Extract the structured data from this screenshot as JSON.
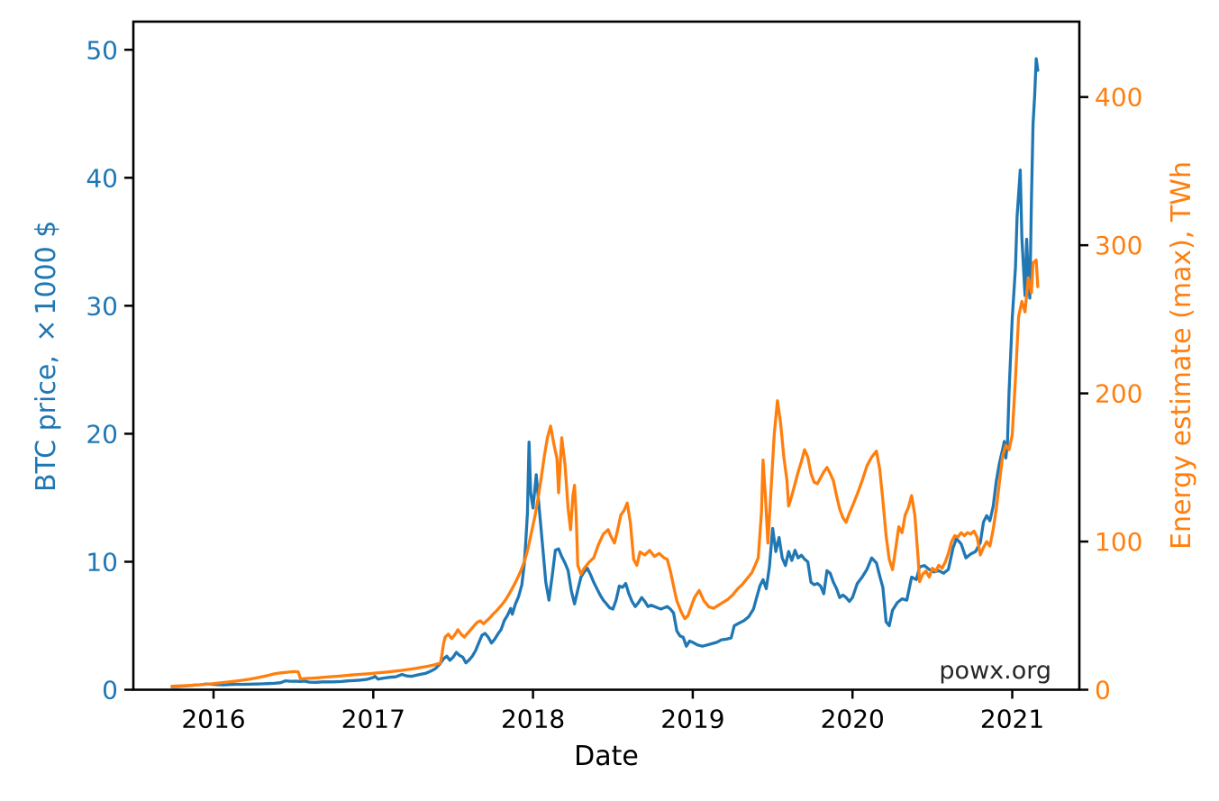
{
  "page": {
    "background": "#ffffff"
  },
  "chart_data": {
    "type": "line",
    "title": "",
    "xlabel": "Date",
    "ylabel_left": "BTC price, ×1000 $",
    "ylabel_right": "Energy estimate (max), TWh",
    "annotation": "powx.org",
    "annotation_color": "#262626",
    "grid": false,
    "legend": "none",
    "colors": {
      "btc": "#1f77b4",
      "energy": "#ff7f0e",
      "axis": "#000000"
    },
    "xlim": [
      2015.498,
      2021.42
    ],
    "ylim_left": [
      0,
      52.2
    ],
    "ylim_right": [
      0,
      450.9
    ],
    "x_tick_values": [
      2016,
      2017,
      2018,
      2019,
      2020,
      2021
    ],
    "x_tick_labels": [
      "2016",
      "2017",
      "2018",
      "2019",
      "2020",
      "2021"
    ],
    "yticks_left": [
      0,
      10,
      20,
      30,
      40,
      50
    ],
    "yticks_right": [
      0,
      100,
      200,
      300,
      400
    ],
    "series": [
      {
        "name": "BTC price, ×1000 $",
        "axis": "left",
        "color": "#1f77b4",
        "x": [
          2015.74,
          2015.78,
          2015.82,
          2015.86,
          2015.89,
          2015.92,
          2015.95,
          2015.98,
          2016.02,
          2016.06,
          2016.1,
          2016.14,
          2016.18,
          2016.22,
          2016.26,
          2016.3,
          2016.34,
          2016.38,
          2016.42,
          2016.45,
          2016.48,
          2016.51,
          2016.54,
          2016.57,
          2016.6,
          2016.64,
          2016.68,
          2016.72,
          2016.76,
          2016.8,
          2016.84,
          2016.88,
          2016.92,
          2016.96,
          2017.0,
          2017.01,
          2017.03,
          2017.06,
          2017.1,
          2017.14,
          2017.18,
          2017.21,
          2017.24,
          2017.27,
          2017.3,
          2017.33,
          2017.36,
          2017.39,
          2017.42,
          2017.44,
          2017.46,
          2017.48,
          2017.5,
          2017.52,
          2017.54,
          2017.56,
          2017.58,
          2017.6,
          2017.62,
          2017.64,
          2017.66,
          2017.68,
          2017.7,
          2017.72,
          2017.74,
          2017.76,
          2017.78,
          2017.8,
          2017.82,
          2017.84,
          2017.86,
          2017.87,
          2017.89,
          2017.91,
          2017.93,
          2017.945,
          2017.955,
          2017.965,
          2017.975,
          2017.985,
          2018.0,
          2018.02,
          2018.04,
          2018.06,
          2018.08,
          2018.1,
          2018.12,
          2018.14,
          2018.16,
          2018.18,
          2018.2,
          2018.22,
          2018.24,
          2018.26,
          2018.28,
          2018.3,
          2018.32,
          2018.34,
          2018.36,
          2018.38,
          2018.4,
          2018.42,
          2018.44,
          2018.46,
          2018.48,
          2018.5,
          2018.52,
          2018.54,
          2018.56,
          2018.58,
          2018.6,
          2018.62,
          2018.64,
          2018.66,
          2018.68,
          2018.7,
          2018.72,
          2018.74,
          2018.76,
          2018.78,
          2018.8,
          2018.82,
          2018.84,
          2018.86,
          2018.88,
          2018.9,
          2018.92,
          2018.94,
          2018.96,
          2018.98,
          2019.0,
          2019.03,
          2019.06,
          2019.09,
          2019.12,
          2019.15,
          2019.18,
          2019.21,
          2019.24,
          2019.26,
          2019.29,
          2019.32,
          2019.35,
          2019.38,
          2019.4,
          2019.42,
          2019.44,
          2019.46,
          2019.48,
          2019.5,
          2019.52,
          2019.54,
          2019.56,
          2019.58,
          2019.6,
          2019.62,
          2019.64,
          2019.66,
          2019.68,
          2019.7,
          2019.72,
          2019.74,
          2019.76,
          2019.78,
          2019.8,
          2019.82,
          2019.84,
          2019.86,
          2019.88,
          2019.9,
          2019.92,
          2019.94,
          2019.96,
          2019.98,
          2020.0,
          2020.03,
          2020.06,
          2020.09,
          2020.12,
          2020.15,
          2020.17,
          2020.19,
          2020.21,
          2020.23,
          2020.25,
          2020.28,
          2020.31,
          2020.34,
          2020.37,
          2020.4,
          2020.42,
          2020.45,
          2020.48,
          2020.51,
          2020.54,
          2020.57,
          2020.6,
          2020.63,
          2020.65,
          2020.68,
          2020.71,
          2020.74,
          2020.77,
          2020.8,
          2020.82,
          2020.84,
          2020.86,
          2020.88,
          2020.9,
          2020.92,
          2020.94,
          2020.95,
          2020.96,
          2020.97,
          2020.98,
          2021.0,
          2021.02,
          2021.03,
          2021.05,
          2021.06,
          2021.08,
          2021.09,
          2021.1,
          2021.11,
          2021.12,
          2021.13,
          2021.14,
          2021.15,
          2021.16
        ],
        "y": [
          0.24,
          0.26,
          0.29,
          0.33,
          0.37,
          0.39,
          0.44,
          0.43,
          0.41,
          0.38,
          0.41,
          0.42,
          0.42,
          0.43,
          0.44,
          0.46,
          0.48,
          0.5,
          0.55,
          0.7,
          0.66,
          0.67,
          0.65,
          0.67,
          0.59,
          0.58,
          0.61,
          0.61,
          0.62,
          0.64,
          0.69,
          0.72,
          0.75,
          0.81,
          0.96,
          1.05,
          0.83,
          0.9,
          0.97,
          1.01,
          1.19,
          1.08,
          1.05,
          1.13,
          1.21,
          1.29,
          1.45,
          1.66,
          2.05,
          2.42,
          2.62,
          2.3,
          2.55,
          2.92,
          2.68,
          2.55,
          2.1,
          2.32,
          2.62,
          3.05,
          3.65,
          4.25,
          4.4,
          4.1,
          3.65,
          3.95,
          4.35,
          4.7,
          5.4,
          5.8,
          6.35,
          5.9,
          6.7,
          7.3,
          8.2,
          9.8,
          11.6,
          13.8,
          19.35,
          15.4,
          14.2,
          16.8,
          14.0,
          11.2,
          8.4,
          7.0,
          8.9,
          10.9,
          11.0,
          10.4,
          9.9,
          9.3,
          7.7,
          6.7,
          7.8,
          8.8,
          9.2,
          9.5,
          9.0,
          8.4,
          7.9,
          7.4,
          7.0,
          6.7,
          6.4,
          6.3,
          7.0,
          8.1,
          8.0,
          8.3,
          7.5,
          6.9,
          6.5,
          6.8,
          7.2,
          6.9,
          6.5,
          6.6,
          6.5,
          6.4,
          6.3,
          6.4,
          6.5,
          6.3,
          6.0,
          4.6,
          4.2,
          4.1,
          3.4,
          3.8,
          3.7,
          3.5,
          3.4,
          3.5,
          3.6,
          3.7,
          3.9,
          3.95,
          4.05,
          5.0,
          5.2,
          5.4,
          5.7,
          6.3,
          7.2,
          8.1,
          8.6,
          7.9,
          9.6,
          12.6,
          10.8,
          11.9,
          10.3,
          9.7,
          10.8,
          10.1,
          10.9,
          10.3,
          10.5,
          10.2,
          10.0,
          8.4,
          8.2,
          8.3,
          8.1,
          7.5,
          9.3,
          9.1,
          8.4,
          7.9,
          7.2,
          7.4,
          7.2,
          6.9,
          7.2,
          8.3,
          8.8,
          9.4,
          10.3,
          9.9,
          8.9,
          8.0,
          5.3,
          5.0,
          6.2,
          6.8,
          7.1,
          7.0,
          8.8,
          8.6,
          9.6,
          9.7,
          9.4,
          9.2,
          9.3,
          9.1,
          9.4,
          11.1,
          11.8,
          11.4,
          10.3,
          10.6,
          10.8,
          11.5,
          13.1,
          13.6,
          13.2,
          14.3,
          16.3,
          17.7,
          18.8,
          19.4,
          18.1,
          19.3,
          23.3,
          29.0,
          33.0,
          37.0,
          40.6,
          35.3,
          30.8,
          35.2,
          32.3,
          30.6,
          38.2,
          44.2,
          46.4,
          49.3,
          48.4
        ]
      },
      {
        "name": "Energy estimate (max), TWh",
        "axis": "right",
        "color": "#ff7f0e",
        "x": [
          2015.74,
          2015.8,
          2015.86,
          2015.92,
          2015.98,
          2016.04,
          2016.1,
          2016.16,
          2016.22,
          2016.28,
          2016.34,
          2016.38,
          2016.42,
          2016.46,
          2016.5,
          2016.53,
          2016.545,
          2016.58,
          2016.62,
          2016.66,
          2016.7,
          2016.74,
          2016.78,
          2016.82,
          2016.86,
          2016.9,
          2016.94,
          2016.98,
          2017.02,
          2017.06,
          2017.1,
          2017.14,
          2017.18,
          2017.22,
          2017.26,
          2017.3,
          2017.34,
          2017.38,
          2017.42,
          2017.43,
          2017.44,
          2017.45,
          2017.47,
          2017.49,
          2017.51,
          2017.53,
          2017.55,
          2017.57,
          2017.59,
          2017.61,
          2017.63,
          2017.65,
          2017.67,
          2017.69,
          2017.71,
          2017.73,
          2017.75,
          2017.77,
          2017.79,
          2017.81,
          2017.83,
          2017.85,
          2017.87,
          2017.89,
          2017.91,
          2017.93,
          2017.95,
          2017.97,
          2017.99,
          2018.01,
          2018.03,
          2018.05,
          2018.07,
          2018.09,
          2018.11,
          2018.13,
          2018.15,
          2018.16,
          2018.18,
          2018.2,
          2018.22,
          2018.235,
          2018.25,
          2018.26,
          2018.27,
          2018.28,
          2018.3,
          2018.32,
          2018.35,
          2018.38,
          2018.41,
          2018.44,
          2018.47,
          2018.49,
          2018.51,
          2018.53,
          2018.55,
          2018.57,
          2018.59,
          2018.61,
          2018.63,
          2018.65,
          2018.67,
          2018.7,
          2018.73,
          2018.76,
          2018.79,
          2018.82,
          2018.84,
          2018.86,
          2018.88,
          2018.9,
          2018.93,
          2018.95,
          2018.97,
          2018.99,
          2019.01,
          2019.04,
          2019.07,
          2019.1,
          2019.13,
          2019.16,
          2019.19,
          2019.22,
          2019.25,
          2019.28,
          2019.31,
          2019.34,
          2019.37,
          2019.39,
          2019.41,
          2019.43,
          2019.44,
          2019.455,
          2019.47,
          2019.49,
          2019.51,
          2019.53,
          2019.55,
          2019.57,
          2019.59,
          2019.6,
          2019.62,
          2019.64,
          2019.66,
          2019.68,
          2019.7,
          2019.72,
          2019.74,
          2019.76,
          2019.78,
          2019.8,
          2019.82,
          2019.84,
          2019.86,
          2019.88,
          2019.9,
          2019.92,
          2019.94,
          2019.96,
          2019.98,
          2020.0,
          2020.03,
          2020.06,
          2020.09,
          2020.12,
          2020.15,
          2020.17,
          2020.19,
          2020.21,
          2020.23,
          2020.25,
          2020.27,
          2020.29,
          2020.31,
          2020.33,
          2020.35,
          2020.37,
          2020.39,
          2020.41,
          2020.42,
          2020.44,
          2020.46,
          2020.48,
          2020.5,
          2020.52,
          2020.54,
          2020.56,
          2020.58,
          2020.6,
          2020.62,
          2020.64,
          2020.66,
          2020.68,
          2020.7,
          2020.72,
          2020.74,
          2020.76,
          2020.78,
          2020.8,
          2020.82,
          2020.84,
          2020.86,
          2020.88,
          2020.9,
          2020.92,
          2020.94,
          2020.96,
          2020.98,
          2021.0,
          2021.02,
          2021.04,
          2021.06,
          2021.08,
          2021.1,
          2021.12,
          2021.13,
          2021.15,
          2021.16
        ],
        "y": [
          2.3,
          2.6,
          3.0,
          3.4,
          3.9,
          4.6,
          5.3,
          6.1,
          7.0,
          8.2,
          9.6,
          10.7,
          11.4,
          11.8,
          12.2,
          12.1,
          7.3,
          7.6,
          7.8,
          8.1,
          8.5,
          8.8,
          9.1,
          9.5,
          9.9,
          10.2,
          10.6,
          10.9,
          11.3,
          11.7,
          12.1,
          12.6,
          13.1,
          13.7,
          14.3,
          15.0,
          15.8,
          16.7,
          18.0,
          24.0,
          31.0,
          35.5,
          37.5,
          34.5,
          37.0,
          40.5,
          37.5,
          35.5,
          38.0,
          40.5,
          43.0,
          45.5,
          46.5,
          44.5,
          46.5,
          48.5,
          51.0,
          53.0,
          55.5,
          58.0,
          61.0,
          64.5,
          68.5,
          72.5,
          77.0,
          82.0,
          88.0,
          96.0,
          106,
          116,
          128,
          142,
          157,
          170,
          178,
          166,
          156,
          133,
          170,
          152,
          122,
          108,
          131,
          138,
          118,
          84,
          78,
          82,
          86,
          89,
          98,
          105,
          108,
          103,
          99,
          108,
          118,
          121,
          126,
          112,
          88,
          84,
          93,
          91,
          94,
          90,
          92,
          89,
          88,
          80,
          70,
          60,
          52,
          48,
          50,
          56,
          62,
          67,
          60,
          56,
          55,
          57,
          59,
          61,
          64,
          68,
          71,
          75,
          79,
          84,
          89,
          120,
          155,
          130,
          99,
          135,
          172,
          195,
          180,
          157,
          141,
          124,
          131,
          139,
          147,
          154,
          162,
          157,
          146,
          140,
          139,
          143,
          147,
          150,
          146,
          141,
          131,
          122,
          116,
          113,
          119,
          124,
          132,
          141,
          151,
          157,
          161,
          149,
          128,
          104,
          88,
          81,
          95,
          110,
          106,
          118,
          123,
          131,
          118,
          90,
          73,
          78,
          80,
          76,
          82,
          80,
          84,
          82,
          86,
          92,
          100,
          104,
          103,
          106,
          104,
          106,
          105,
          107,
          103,
          91,
          96,
          100,
          97,
          108,
          122,
          140,
          158,
          165,
          162,
          172,
          210,
          252,
          262,
          255,
          278,
          268,
          288,
          290,
          272
        ]
      }
    ]
  }
}
